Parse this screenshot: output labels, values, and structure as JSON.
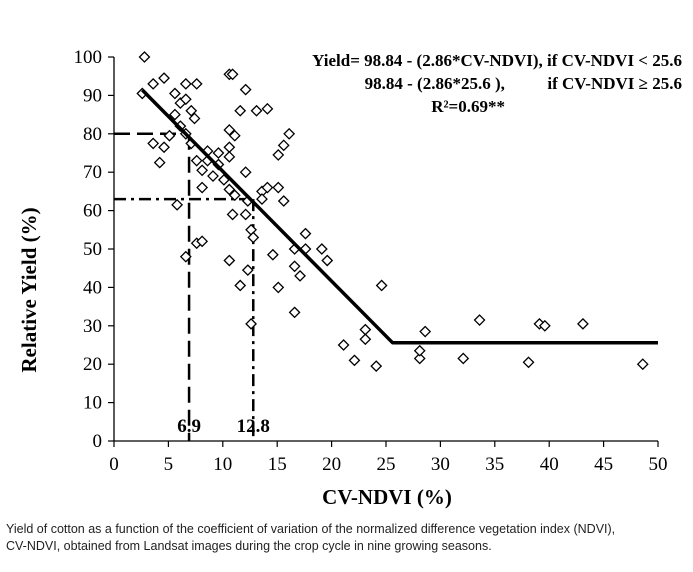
{
  "chart_data": {
    "type": "scatter",
    "xlabel": "CV-NDVI (%)",
    "ylabel": "Relative Yield (%)",
    "xlim": [
      0,
      50
    ],
    "ylim": [
      0,
      100
    ],
    "x_ticks": [
      0,
      5,
      10,
      15,
      20,
      25,
      30,
      35,
      40,
      45,
      50
    ],
    "y_ticks": [
      0,
      10,
      20,
      30,
      40,
      50,
      60,
      70,
      80,
      90,
      100
    ],
    "grid": false,
    "marker": "diamond",
    "equation_lines": [
      "Yield= 98.84 - (2.86*CV-NDVI), if CV-NDVI < 25.6",
      "98.84 - (2.86*25.6 ),          if CV-NDVI ≥ 25.6",
      "R²=0.69**"
    ],
    "fit_line": {
      "points": [
        [
          2.6,
          91.4
        ],
        [
          25.6,
          25.6
        ],
        [
          50,
          25.6
        ]
      ]
    },
    "reference_lines": [
      {
        "x": 6.9,
        "y": 80,
        "style": "dash",
        "label": "6.9"
      },
      {
        "x": 12.8,
        "y": 63,
        "style": "dash-dot",
        "label": "12.8"
      }
    ],
    "points": [
      [
        2.8,
        100
      ],
      [
        2.6,
        90.5
      ],
      [
        3.6,
        93
      ],
      [
        4.6,
        94.5
      ],
      [
        5.6,
        90.5
      ],
      [
        6.1,
        88
      ],
      [
        6.6,
        89
      ],
      [
        7.1,
        86
      ],
      [
        7.4,
        84
      ],
      [
        6.6,
        93
      ],
      [
        7.6,
        93
      ],
      [
        3.6,
        77.5
      ],
      [
        4.2,
        72.5
      ],
      [
        5.1,
        79.5
      ],
      [
        5.6,
        85
      ],
      [
        6.1,
        82
      ],
      [
        6.6,
        80
      ],
      [
        7.1,
        77.5
      ],
      [
        5.8,
        61.5
      ],
      [
        4.6,
        76.5
      ],
      [
        6.6,
        48
      ],
      [
        7.6,
        51.5
      ],
      [
        8.1,
        52
      ],
      [
        7.6,
        73
      ],
      [
        8.1,
        70.5
      ],
      [
        8.6,
        73
      ],
      [
        8.1,
        66
      ],
      [
        8.6,
        75.5
      ],
      [
        9.1,
        69
      ],
      [
        9.6,
        72
      ],
      [
        9.6,
        75
      ],
      [
        10.6,
        95.5
      ],
      [
        10.9,
        95.5
      ],
      [
        11.6,
        86
      ],
      [
        12.1,
        91.5
      ],
      [
        11.1,
        79.5
      ],
      [
        10.6,
        81
      ],
      [
        10.6,
        76.5
      ],
      [
        10.6,
        74
      ],
      [
        10.1,
        68
      ],
      [
        10.6,
        65.5
      ],
      [
        11.1,
        64
      ],
      [
        10.9,
        59
      ],
      [
        10.6,
        47
      ],
      [
        11.6,
        40.5
      ],
      [
        12.1,
        70
      ],
      [
        12.3,
        62.5
      ],
      [
        12.1,
        59
      ],
      [
        12.6,
        55
      ],
      [
        12.8,
        53
      ],
      [
        12.3,
        44.5
      ],
      [
        12.6,
        30.5
      ],
      [
        13.1,
        86
      ],
      [
        14.1,
        86.5
      ],
      [
        13.6,
        65
      ],
      [
        13.6,
        63
      ],
      [
        14.1,
        66
      ],
      [
        14.6,
        48.5
      ],
      [
        15.1,
        66
      ],
      [
        15.6,
        77
      ],
      [
        15.1,
        74.5
      ],
      [
        16.1,
        80
      ],
      [
        15.1,
        40
      ],
      [
        15.6,
        62.5
      ],
      [
        16.6,
        50
      ],
      [
        16.6,
        45.5
      ],
      [
        17.1,
        43
      ],
      [
        16.6,
        33.5
      ],
      [
        17.6,
        54
      ],
      [
        17.6,
        50
      ],
      [
        19.1,
        50
      ],
      [
        19.6,
        47
      ],
      [
        21.1,
        25
      ],
      [
        22.1,
        21
      ],
      [
        23.1,
        29
      ],
      [
        23.1,
        26.5
      ],
      [
        24.1,
        19.5
      ],
      [
        24.6,
        40.5
      ],
      [
        28.1,
        21.5
      ],
      [
        28.1,
        23.5
      ],
      [
        28.6,
        28.5
      ],
      [
        32.1,
        21.5
      ],
      [
        33.6,
        31.5
      ],
      [
        38.1,
        20.5
      ],
      [
        39.1,
        30.5
      ],
      [
        39.6,
        30
      ],
      [
        43.1,
        30.5
      ],
      [
        48.6,
        20
      ]
    ]
  },
  "caption": {
    "line1": "Yield of cotton as a function of the coefficient of variation of the normalized difference vegetation index (NDVI),",
    "line2": "CV-NDVI, obtained from Landsat images during the crop cycle in nine growing seasons."
  }
}
